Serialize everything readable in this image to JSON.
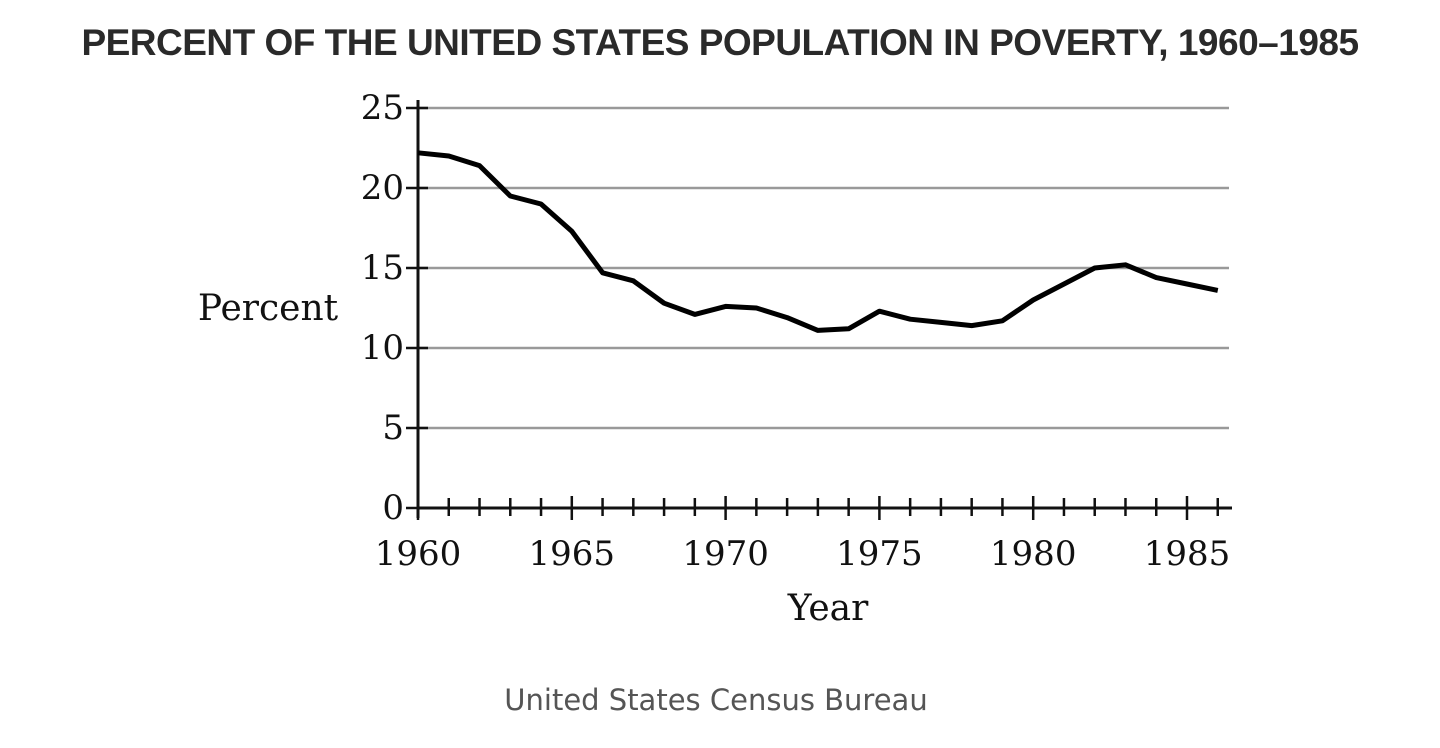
{
  "chart_data": {
    "type": "line",
    "title": "PERCENT OF THE UNITED STATES POPULATION IN POVERTY, 1960–1985",
    "xlabel": "Year",
    "ylabel": "Percent",
    "source": "United States Census Bureau",
    "xlim": [
      1960,
      1986
    ],
    "ylim": [
      0,
      25
    ],
    "x_ticks": [
      1960,
      1965,
      1970,
      1975,
      1980,
      1985
    ],
    "y_ticks": [
      0,
      5,
      10,
      15,
      20,
      25
    ],
    "grid": "horizontal",
    "line_color": "#000000",
    "grid_color": "#999999",
    "x": [
      1960,
      1961,
      1962,
      1963,
      1964,
      1965,
      1966,
      1967,
      1968,
      1969,
      1970,
      1971,
      1972,
      1973,
      1974,
      1975,
      1976,
      1977,
      1978,
      1979,
      1980,
      1981,
      1982,
      1983,
      1984,
      1985,
      1986
    ],
    "values": [
      22.2,
      22.0,
      21.4,
      19.5,
      19.0,
      17.3,
      14.7,
      14.2,
      12.8,
      12.1,
      12.6,
      12.5,
      11.9,
      11.1,
      11.2,
      12.3,
      11.8,
      11.6,
      11.4,
      11.7,
      13.0,
      14.0,
      15.0,
      15.2,
      14.4,
      14.0,
      13.6
    ]
  }
}
